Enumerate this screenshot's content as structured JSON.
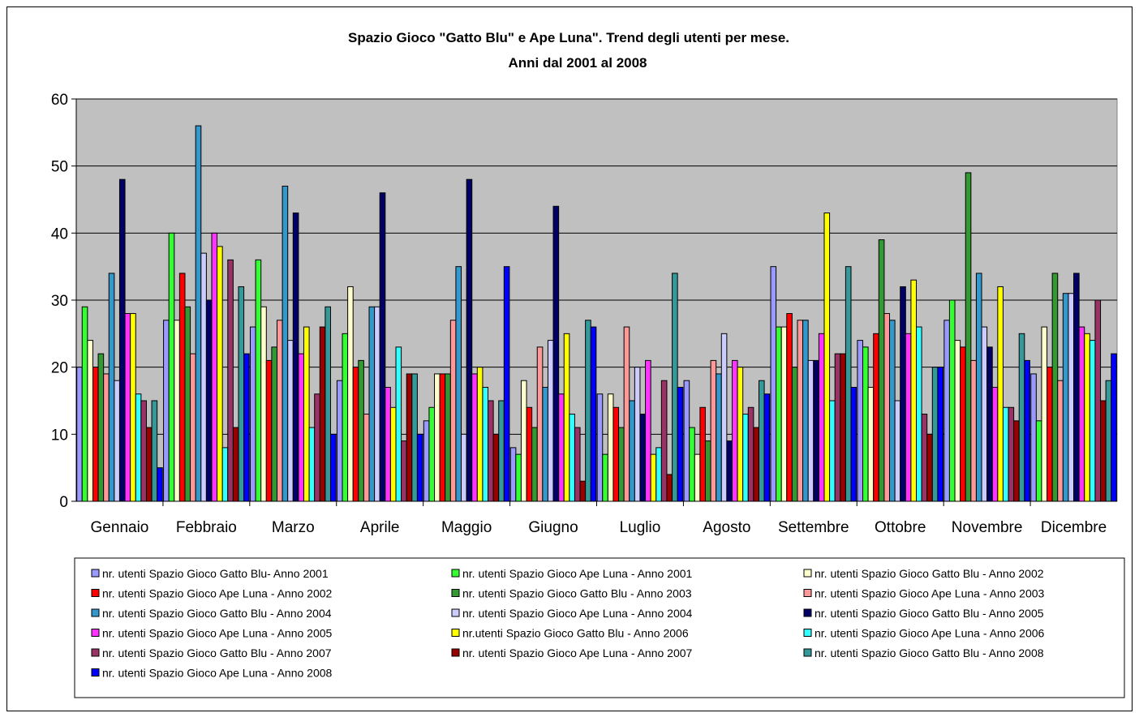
{
  "chart_data": {
    "type": "bar",
    "title": "Spazio Gioco \"Gatto Blu\" e Ape Luna\". Trend degli utenti per mese.",
    "subtitle": "Anni dal 2001 al 2008",
    "ylim": [
      0,
      60
    ],
    "yticks": [
      0,
      10,
      20,
      30,
      40,
      50,
      60
    ],
    "grid": true,
    "legend_position": "bottom",
    "plot_background": "#c0c0c0",
    "categories": [
      "Gennaio",
      "Febbraio",
      "Marzo",
      "Aprile",
      "Maggio",
      "Giugno",
      "Luglio",
      "Agosto",
      "Settembre",
      "Ottobre",
      "Novembre",
      "Dicembre"
    ],
    "series": [
      {
        "name": "nr. utenti Spazio Gioco Gatto Blu- Anno 2001",
        "color": "#9999ff",
        "values": [
          20,
          27,
          26,
          18,
          12,
          8,
          16,
          18,
          35,
          24,
          27,
          19
        ]
      },
      {
        "name": "nr. utenti Spazio Gioco Ape Luna - Anno 2001",
        "color": "#33ff33",
        "values": [
          29,
          40,
          36,
          25,
          14,
          7,
          7,
          11,
          26,
          23,
          30,
          12
        ]
      },
      {
        "name": "nr. utenti Spazio Gioco Gatto Blu - Anno 2002",
        "color": "#ffffcc",
        "values": [
          24,
          27,
          29,
          32,
          19,
          18,
          16,
          7,
          26,
          17,
          24,
          26
        ]
      },
      {
        "name": "nr. utenti Spazio Gioco Ape Luna - Anno 2002",
        "color": "#ff0000",
        "values": [
          20,
          34,
          21,
          20,
          19,
          14,
          14,
          14,
          28,
          25,
          23,
          20
        ]
      },
      {
        "name": "nr. utenti Spazio Gioco Gatto Blu - Anno 2003",
        "color": "#339933",
        "values": [
          22,
          29,
          23,
          21,
          19,
          11,
          11,
          9,
          20,
          39,
          49,
          34
        ]
      },
      {
        "name": "nr. utenti Spazio Gioco Ape Luna - Anno 2003",
        "color": "#ff9999",
        "values": [
          19,
          22,
          27,
          13,
          27,
          23,
          26,
          21,
          27,
          28,
          21,
          18
        ]
      },
      {
        "name": "nr. utenti Spazio Gioco Gatto Blu - Anno 2004",
        "color": "#3399cc",
        "values": [
          34,
          56,
          47,
          29,
          35,
          17,
          15,
          19,
          27,
          27,
          34,
          31
        ]
      },
      {
        "name": "nr. utenti Spazio Gioco Ape Luna - Anno 2004",
        "color": "#ccccff",
        "values": [
          18,
          37,
          24,
          29,
          10,
          24,
          20,
          25,
          21,
          15,
          26,
          31
        ]
      },
      {
        "name": "nr. utenti Spazio Gioco Gatto Blu - Anno 2005",
        "color": "#000066",
        "values": [
          48,
          30,
          43,
          46,
          48,
          44,
          13,
          9,
          21,
          32,
          23,
          34
        ]
      },
      {
        "name": "nr. utenti Spazio Gioco Ape Luna - Anno 2005",
        "color": "#ff33ff",
        "values": [
          28,
          40,
          22,
          17,
          19,
          16,
          21,
          21,
          25,
          25,
          17,
          26
        ]
      },
      {
        "name": "nr.utenti Spazio Gioco Gatto Blu - Anno 2006",
        "color": "#ffff00",
        "values": [
          28,
          38,
          26,
          14,
          20,
          25,
          7,
          20,
          43,
          33,
          32,
          25
        ]
      },
      {
        "name": "nr. utenti Spazio Gioco Ape Luna - Anno 2006",
        "color": "#33ffff",
        "values": [
          16,
          8,
          11,
          23,
          17,
          13,
          8,
          13,
          15,
          26,
          14,
          24
        ]
      },
      {
        "name": "nr. utenti Spazio Gioco Gatto Blu - Anno 2007",
        "color": "#993366",
        "values": [
          15,
          36,
          16,
          9,
          15,
          11,
          18,
          14,
          22,
          13,
          14,
          30
        ]
      },
      {
        "name": "nr. utenti Spazio Gioco Ape Luna - Anno 2007",
        "color": "#990000",
        "values": [
          11,
          11,
          26,
          19,
          10,
          3,
          4,
          11,
          22,
          10,
          12,
          15
        ]
      },
      {
        "name": "nr. utenti Spazio Gioco Gatto Blu - Anno 2008",
        "color": "#339999",
        "values": [
          15,
          32,
          29,
          19,
          15,
          27,
          34,
          18,
          35,
          20,
          25,
          18
        ]
      },
      {
        "name": "nr. utenti Spazio Gioco Ape Luna - Anno 2008",
        "color": "#0000ff",
        "values": [
          5,
          22,
          10,
          10,
          35,
          26,
          17,
          16,
          17,
          20,
          21,
          22
        ]
      }
    ]
  }
}
